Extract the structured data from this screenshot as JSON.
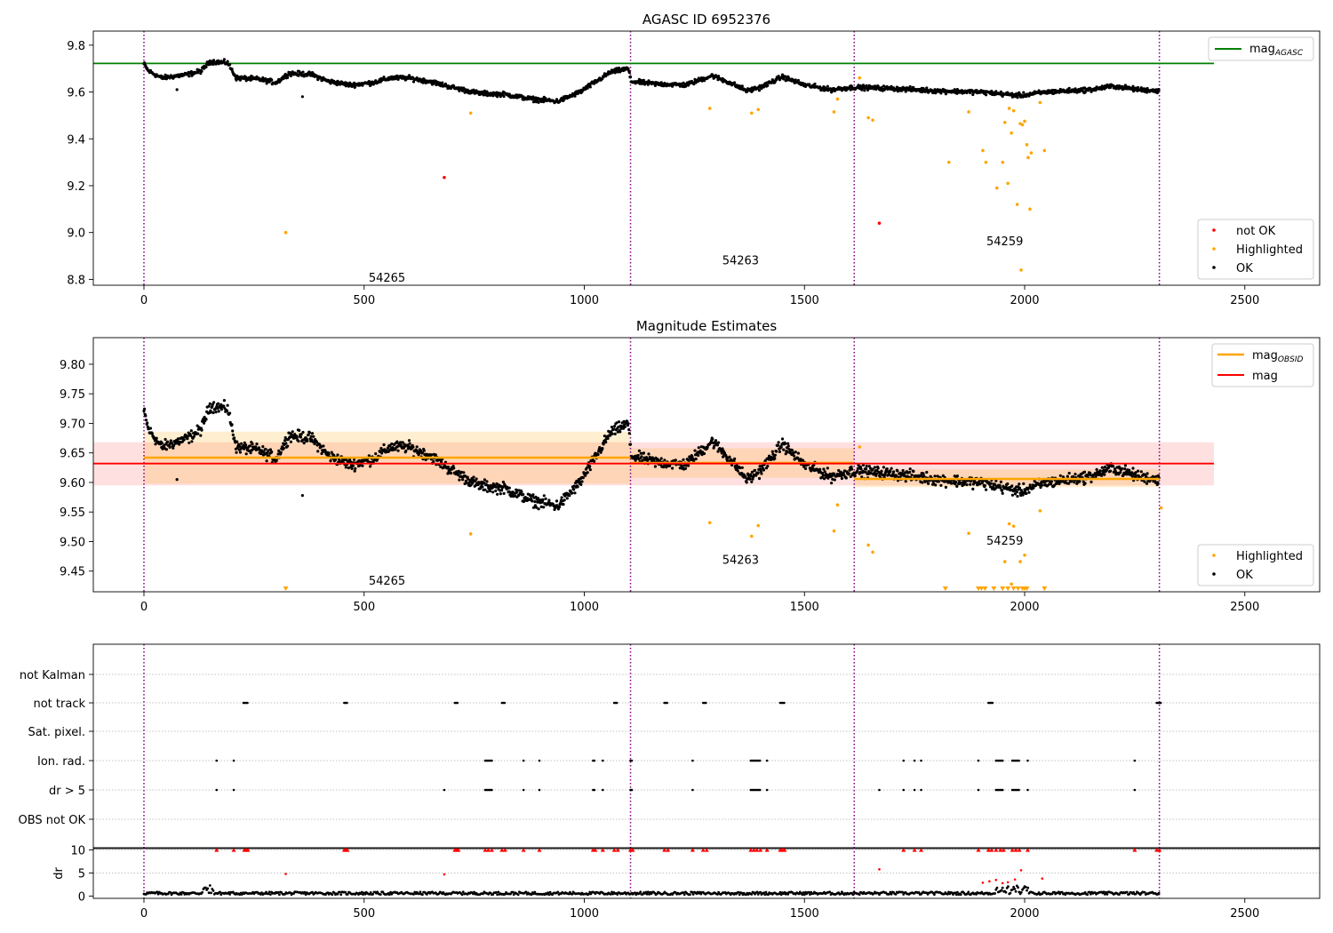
{
  "chart_data": [
    {
      "type": "scatter",
      "title": "AGASC ID 6952376",
      "xlim": [
        -115,
        2670
      ],
      "ylim": [
        8.775,
        9.86
      ],
      "xticks": [
        "0",
        "500",
        "1000",
        "1500",
        "2000",
        "2500"
      ],
      "yticks": [
        "8.8",
        "9.0",
        "9.2",
        "9.4",
        "9.6",
        "9.8"
      ],
      "ref_line": {
        "name": "mag_AGASC",
        "value": 9.722,
        "x_end": 2430,
        "color": "#008000"
      },
      "obs_boundaries": [
        0,
        1105,
        1613,
        2306
      ],
      "obs_labels": [
        {
          "text": "54265",
          "x": 552,
          "y": 8.79
        },
        {
          "text": "54263",
          "x": 1355,
          "y": 8.865
        },
        {
          "text": "54259",
          "x": 1955,
          "y": 8.945
        }
      ],
      "series": [
        {
          "name": "not OK",
          "color": "#ff0000",
          "points": [
            [
              682,
              9.235
            ],
            [
              1670,
              9.04
            ]
          ]
        },
        {
          "name": "Highlighted",
          "color": "#ffa500",
          "points": [
            [
              322,
              9.0
            ],
            [
              742,
              9.51
            ],
            [
              1285,
              9.53
            ],
            [
              1380,
              9.51
            ],
            [
              1395,
              9.525
            ],
            [
              1567,
              9.515
            ],
            [
              1575,
              9.57
            ],
            [
              1625,
              9.66
            ],
            [
              1645,
              9.49
            ],
            [
              1655,
              9.48
            ],
            [
              1828,
              9.3
            ],
            [
              1873,
              9.515
            ],
            [
              1905,
              9.35
            ],
            [
              1912,
              9.3
            ],
            [
              1937,
              9.19
            ],
            [
              1950,
              9.3
            ],
            [
              1955,
              9.47
            ],
            [
              1962,
              9.21
            ],
            [
              1965,
              9.53
            ],
            [
              1970,
              9.425
            ],
            [
              1975,
              9.52
            ],
            [
              1983,
              9.12
            ],
            [
              1990,
              9.465
            ],
            [
              1995,
              9.46
            ],
            [
              2000,
              9.475
            ],
            [
              1992,
              8.84
            ],
            [
              2005,
              9.375
            ],
            [
              2008,
              9.32
            ],
            [
              2012,
              9.1
            ],
            [
              2015,
              9.34
            ],
            [
              2035,
              9.555
            ],
            [
              2045,
              9.35
            ]
          ]
        }
      ],
      "ok_label": "OK",
      "legend": [
        {
          "label": "not OK",
          "color": "#ff0000"
        },
        {
          "label": "Highlighted",
          "color": "#ffa500"
        },
        {
          "label": "OK",
          "color": "#000000"
        }
      ],
      "legend_line": {
        "base": "mag",
        "sub": "AGASC"
      }
    },
    {
      "type": "scatter",
      "title": "Magnitude Estimates",
      "xlim": [
        -115,
        2670
      ],
      "ylim": [
        9.415,
        9.845
      ],
      "xticks": [
        "0",
        "500",
        "1000",
        "1500",
        "2000",
        "2500"
      ],
      "yticks": [
        "9.45",
        "9.50",
        "9.55",
        "9.60",
        "9.65",
        "9.70",
        "9.75",
        "9.80"
      ],
      "mag_line": {
        "name": "mag",
        "value": 9.632,
        "band": [
          9.595,
          9.668
        ],
        "x_end": 2430,
        "color": "#ff0000"
      },
      "obsid_segments": [
        {
          "x0": 0,
          "x1": 1105,
          "value": 9.642,
          "band": [
            9.598,
            9.686
          ]
        },
        {
          "x0": 1105,
          "x1": 1613,
          "value": 9.633,
          "band": [
            9.608,
            9.658
          ]
        },
        {
          "x0": 1613,
          "x1": 2306,
          "value": 9.606,
          "band": [
            9.592,
            9.622
          ]
        }
      ],
      "obs_boundaries": [
        0,
        1105,
        1613,
        2306
      ],
      "obs_labels": [
        {
          "text": "54265",
          "x": 552,
          "y": 9.427
        },
        {
          "text": "54263",
          "x": 1355,
          "y": 9.462
        },
        {
          "text": "54259",
          "x": 1955,
          "y": 9.495
        }
      ],
      "series": [
        {
          "name": "Highlighted",
          "color": "#ffa500",
          "points": [
            [
              742,
              9.513
            ],
            [
              1285,
              9.532
            ],
            [
              1380,
              9.509
            ],
            [
              1395,
              9.527
            ],
            [
              1567,
              9.518
            ],
            [
              1575,
              9.562
            ],
            [
              1625,
              9.66
            ],
            [
              1645,
              9.494
            ],
            [
              1655,
              9.482
            ],
            [
              1873,
              9.514
            ],
            [
              1955,
              9.466
            ],
            [
              1965,
              9.53
            ],
            [
              1970,
              9.428
            ],
            [
              1975,
              9.526
            ],
            [
              1990,
              9.466
            ],
            [
              2000,
              9.477
            ],
            [
              2035,
              9.552
            ],
            [
              2310,
              9.557
            ]
          ]
        }
      ],
      "offscale_markers": [
        322,
        1820,
        1895,
        1902,
        1910,
        1930,
        1950,
        1962,
        1975,
        1985,
        1995,
        2000,
        2005,
        2045
      ],
      "ok_label": "OK",
      "legend": [
        {
          "label": "Highlighted",
          "color": "#ffa500"
        },
        {
          "label": "OK",
          "color": "#000000"
        }
      ],
      "legend_lines": [
        {
          "base": "mag",
          "sub": "OBSID",
          "color": "#ffa500"
        },
        {
          "base": "mag",
          "sub": "",
          "color": "#ff0000"
        }
      ]
    },
    {
      "type": "scatter",
      "title": "",
      "xlim": [
        -115,
        2670
      ],
      "categories": [
        "not Kalman",
        "not track",
        "Sat. pixel.",
        "Ion. rad.",
        "dr > 5",
        "OBS not OK"
      ],
      "obs_boundaries": [
        0,
        1105,
        1613,
        2306
      ],
      "flags": {
        "not track": [
          [
            226,
            236
          ],
          [
            455,
            462
          ],
          [
            706,
            714
          ],
          [
            813,
            820
          ],
          [
            1068,
            1076
          ],
          [
            1182,
            1190
          ],
          [
            1270,
            1278
          ],
          [
            1445,
            1455
          ],
          [
            1918,
            1928
          ],
          [
            2300,
            2310
          ]
        ],
        "Ion. rad.": [
          [
            165,
            165
          ],
          [
            204,
            204
          ],
          [
            775,
            790
          ],
          [
            862,
            862
          ],
          [
            898,
            898
          ],
          [
            1020,
            1025
          ],
          [
            1042,
            1042
          ],
          [
            1105,
            1110
          ],
          [
            1246,
            1246
          ],
          [
            1378,
            1400
          ],
          [
            1415,
            1415
          ],
          [
            1725,
            1725
          ],
          [
            1750,
            1750
          ],
          [
            1765,
            1765
          ],
          [
            1895,
            1895
          ],
          [
            1935,
            1952
          ],
          [
            1972,
            1988
          ],
          [
            2007,
            2007
          ],
          [
            2250,
            2250
          ]
        ],
        "dr > 5": [
          [
            165,
            165
          ],
          [
            204,
            204
          ],
          [
            682,
            682
          ],
          [
            775,
            790
          ],
          [
            862,
            862
          ],
          [
            898,
            898
          ],
          [
            1020,
            1025
          ],
          [
            1042,
            1042
          ],
          [
            1105,
            1110
          ],
          [
            1246,
            1246
          ],
          [
            1378,
            1400
          ],
          [
            1415,
            1415
          ],
          [
            1670,
            1670
          ],
          [
            1725,
            1725
          ],
          [
            1750,
            1750
          ],
          [
            1765,
            1765
          ],
          [
            1895,
            1895
          ],
          [
            1935,
            1952
          ],
          [
            1972,
            1988
          ],
          [
            2007,
            2007
          ],
          [
            2250,
            2250
          ]
        ]
      }
    },
    {
      "type": "scatter",
      "title": "",
      "xlim": [
        -115,
        2670
      ],
      "ylim": [
        -0.5,
        10.5
      ],
      "ylabel": "dr",
      "xticks": [
        "0",
        "500",
        "1000",
        "1500",
        "2000",
        "2500"
      ],
      "yticks": [
        "0",
        "5",
        "10"
      ],
      "clip_value": 10,
      "clipped_x": [
        165,
        204,
        228,
        232,
        236,
        455,
        459,
        462,
        706,
        710,
        714,
        775,
        782,
        790,
        813,
        820,
        862,
        898,
        1020,
        1025,
        1042,
        1068,
        1076,
        1105,
        1110,
        1182,
        1190,
        1246,
        1270,
        1278,
        1378,
        1385,
        1392,
        1400,
        1415,
        1445,
        1450,
        1455,
        1725,
        1750,
        1765,
        1895,
        1918,
        1925,
        1935,
        1945,
        1952,
        1972,
        1980,
        1988,
        2007,
        2250,
        2300,
        2306
      ],
      "red_points": [
        [
          322,
          4.8
        ],
        [
          682,
          4.7
        ],
        [
          1670,
          5.8
        ],
        [
          1905,
          2.9
        ],
        [
          1920,
          3.2
        ],
        [
          1935,
          3.5
        ],
        [
          1950,
          2.8
        ],
        [
          1962,
          3.0
        ],
        [
          1978,
          3.6
        ],
        [
          1992,
          5.6
        ],
        [
          2040,
          3.8
        ]
      ]
    }
  ]
}
